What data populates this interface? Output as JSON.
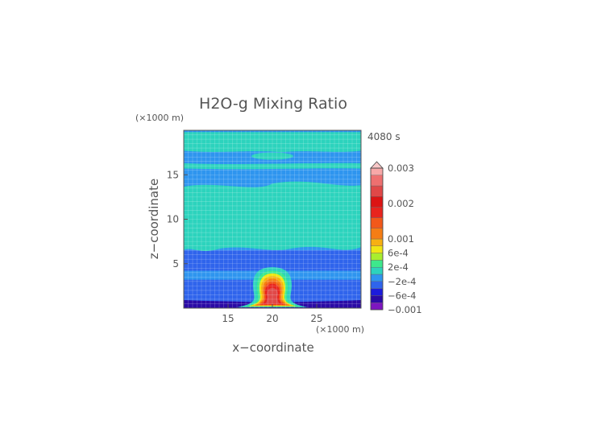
{
  "chart_data": {
    "type": "heatmap",
    "title": "H2O-g Mixing Ratio",
    "time_label": "4080 s",
    "xlabel": "x−coordinate",
    "ylabel": "z−coordinate",
    "x_unit": "(×1000 m)",
    "y_unit": "(×1000 m)",
    "xlim": [
      10,
      30
    ],
    "ylim": [
      0,
      20
    ],
    "xticks": [
      15,
      20,
      25
    ],
    "yticks": [
      5,
      10,
      15
    ],
    "grid": true,
    "colorbar": {
      "levels": [
        {
          "lo": -0.001,
          "hi": -0.0008,
          "color": "#7d15c0"
        },
        {
          "lo": -0.0008,
          "hi": -0.0006,
          "color": "#2a0aa6"
        },
        {
          "lo": -0.0006,
          "hi": -0.0004,
          "color": "#1c1cdc"
        },
        {
          "lo": -0.0004,
          "hi": -0.0002,
          "color": "#2f64ec"
        },
        {
          "lo": -0.0002,
          "hi": 0,
          "color": "#2e95ef"
        },
        {
          "lo": 0,
          "hi": 0.0002,
          "color": "#2cd3bd"
        },
        {
          "lo": 0.0002,
          "hi": 0.0004,
          "color": "#3de88c"
        },
        {
          "lo": 0.0004,
          "hi": 0.0006,
          "color": "#a8ee2e"
        },
        {
          "lo": 0.0006,
          "hi": 0.0008,
          "color": "#f0e614"
        },
        {
          "lo": 0.0008,
          "hi": 0.001,
          "color": "#f7b012"
        },
        {
          "lo": 0.001,
          "hi": 0.0013,
          "color": "#f57d14"
        },
        {
          "lo": 0.0013,
          "hi": 0.0016,
          "color": "#f2581a"
        },
        {
          "lo": 0.0016,
          "hi": 0.0019,
          "color": "#e8241e"
        },
        {
          "lo": 0.0019,
          "hi": 0.0022,
          "color": "#dc1414"
        },
        {
          "lo": 0.0022,
          "hi": 0.0025,
          "color": "#e04848"
        },
        {
          "lo": 0.0025,
          "hi": 0.0028,
          "color": "#ee7070"
        },
        {
          "lo": 0.0028,
          "hi": 0.003,
          "color": "#f8a8a8"
        }
      ],
      "overflow_color": "#f8c8c8",
      "tick_labels": [
        {
          "value": 0.003,
          "label": "0.003"
        },
        {
          "value": 0.002,
          "label": "0.002"
        },
        {
          "value": 0.001,
          "label": "0.001"
        },
        {
          "value": 0.0006,
          "label": "6e-4"
        },
        {
          "value": 0.0002,
          "label": "2e-4"
        },
        {
          "value": -0.0002,
          "label": "−2e-4"
        },
        {
          "value": -0.0006,
          "label": "−6e-4"
        },
        {
          "value": -0.001,
          "label": "−0.001"
        }
      ]
    },
    "field_features": [
      {
        "kind": "background",
        "value": -0.0001
      },
      {
        "kind": "band",
        "z": [
          0.6,
          3.2
        ],
        "value": -0.0003
      },
      {
        "kind": "band",
        "z": [
          4.2,
          6.5
        ],
        "value": -0.0003
      },
      {
        "kind": "region",
        "x": [
          10,
          30
        ],
        "z": [
          6.5,
          14.2
        ],
        "value": 5e-05
      },
      {
        "kind": "region",
        "x": [
          10,
          30
        ],
        "z": [
          15.7,
          16.3
        ],
        "value": 5e-05
      },
      {
        "kind": "region",
        "x": [
          10,
          30
        ],
        "z": [
          17.7,
          19.8
        ],
        "value": 5e-05
      },
      {
        "kind": "surface-layer",
        "z": [
          0,
          0.9
        ],
        "value": -0.0007
      },
      {
        "kind": "plume",
        "x_center": 20,
        "z_top": 4.6,
        "max_value": 0.0022
      }
    ]
  }
}
